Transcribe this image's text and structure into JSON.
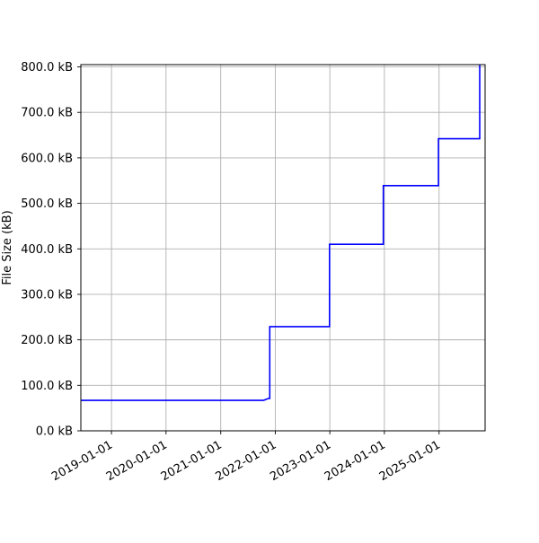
{
  "chart_data": {
    "type": "line",
    "title": "",
    "xlabel": "",
    "ylabel": "File Size (kB)",
    "grid": true,
    "x_axis": {
      "type": "date",
      "range": [
        "2018-06-10",
        "2025-11-05"
      ],
      "tick_values": [
        "2019-01-01",
        "2020-01-01",
        "2021-01-01",
        "2022-01-01",
        "2023-01-01",
        "2024-01-01",
        "2025-01-01"
      ],
      "tick_labels": [
        "2019-01-01",
        "2020-01-01",
        "2021-01-01",
        "2022-01-01",
        "2023-01-01",
        "2024-01-01",
        "2025-01-01"
      ]
    },
    "y_axis": {
      "range": [
        0,
        805
      ],
      "tick_values": [
        0,
        100,
        200,
        300,
        400,
        500,
        600,
        700,
        800
      ],
      "tick_labels": [
        "0.0 kB",
        "100.0 kB",
        "200.0 kB",
        "300.0 kB",
        "400.0 kB",
        "500.0 kB",
        "600.0 kB",
        "700.0 kB",
        "800.0 kB"
      ]
    },
    "series": [
      {
        "color": "#0000ff",
        "points": [
          {
            "x": "2018-06-10",
            "y": 67
          },
          {
            "x": "2021-10-15",
            "y": 67
          },
          {
            "x": "2021-11-15",
            "y": 71
          },
          {
            "x": "2021-11-25",
            "y": 71
          },
          {
            "x": "2021-11-25",
            "y": 229
          },
          {
            "x": "2022-12-30",
            "y": 229
          },
          {
            "x": "2022-12-30",
            "y": 410
          },
          {
            "x": "2023-12-25",
            "y": 410
          },
          {
            "x": "2023-12-25",
            "y": 539
          },
          {
            "x": "2024-12-28",
            "y": 539
          },
          {
            "x": "2024-12-28",
            "y": 642
          },
          {
            "x": "2025-09-30",
            "y": 642
          },
          {
            "x": "2025-09-30",
            "y": 805
          }
        ]
      }
    ]
  }
}
